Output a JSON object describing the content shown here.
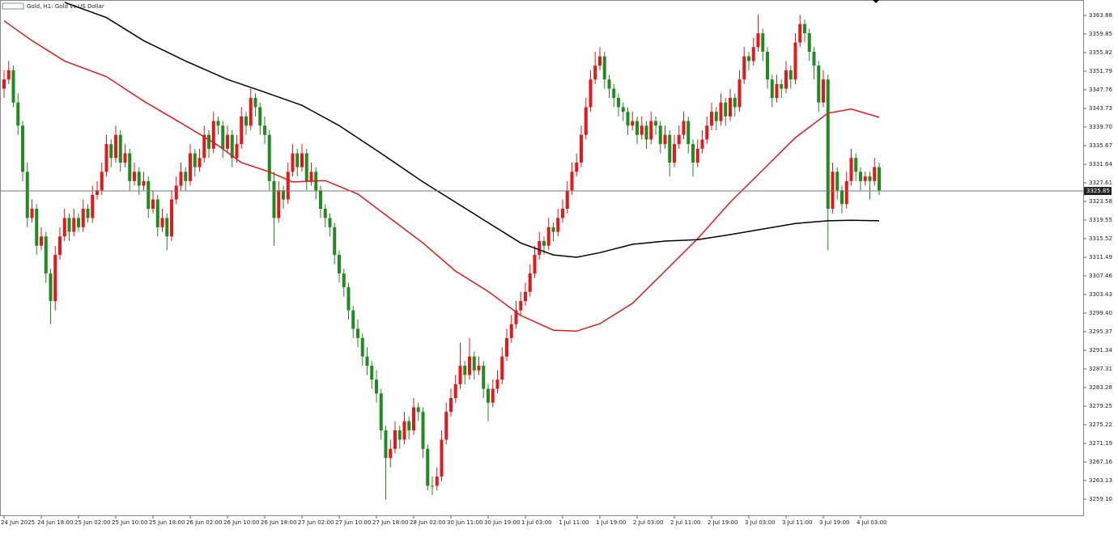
{
  "chart_data": {
    "type": "candlestick",
    "title": "Gold, H1: Gold vs US Dollar",
    "up_color": "#e8161a",
    "down_color": "#1e8c1e",
    "xlim": [
      -0.87,
      231.83
    ],
    "ylim": [
      3255.6,
      3367.21
    ],
    "yticks": [
      {
        "value": 3259.1,
        "label": "3259.10"
      },
      3263.13,
      3267.16,
      3271.19,
      3275.22,
      3279.25,
      3283.28,
      3287.31,
      3291.34,
      3295.37,
      {
        "value": 3299.4,
        "label": "3299.40"
      },
      3303.43,
      3307.46,
      3311.49,
      3315.52,
      3319.55,
      3323.58,
      3327.61,
      3331.64,
      3335.67,
      {
        "value": 3339.7,
        "label": "3339.70"
      },
      3343.73,
      3347.76,
      3351.79,
      3355.82,
      3359.85,
      3363.88
    ],
    "xticks": [
      {
        "value": 0,
        "label": "24 Jun 2025"
      },
      {
        "value": 8,
        "label": "24 Jun 18:00"
      },
      {
        "value": 16,
        "label": "25 Jun 02:00"
      },
      {
        "value": 24,
        "label": "25 Jun 10:00"
      },
      {
        "value": 32,
        "label": "25 Jun 18:00"
      },
      {
        "value": 40,
        "label": "26 Jun 02:00"
      },
      {
        "value": 48,
        "label": "26 Jun 10:00"
      },
      {
        "value": 56,
        "label": "26 Jun 18:00"
      },
      {
        "value": 64,
        "label": "27 Jun 02:00"
      },
      {
        "value": 72,
        "label": "27 Jun 10:00"
      },
      {
        "value": 80,
        "label": "27 Jun 18:00"
      },
      {
        "value": 88,
        "label": "28 Jun 02:00"
      },
      {
        "value": 96,
        "label": "30 Jun 11:00"
      },
      {
        "value": 104,
        "label": "30 Jun 19:00"
      },
      {
        "value": 112,
        "label": "1 Jul 03:00"
      },
      {
        "value": 120,
        "label": "1 Jul 11:00"
      },
      {
        "value": 128,
        "label": "1 Jul 19:00"
      },
      {
        "value": 136,
        "label": "2 Jul 03:00"
      },
      {
        "value": 144,
        "label": "2 Jul 11:00"
      },
      {
        "value": 152,
        "label": "2 Jul 19:00"
      },
      {
        "value": 160,
        "label": "3 Jul 03:00"
      },
      {
        "value": 168,
        "label": "3 Jul 11:00"
      },
      {
        "value": 176,
        "label": "3 Jul 19:00"
      },
      {
        "value": 184,
        "label": "4 Jul 03:00"
      }
    ],
    "last_price": 3325.85,
    "candles": [
      [
        3348,
        3352,
        3346,
        3350
      ],
      [
        3350,
        3354,
        3349,
        3352
      ],
      [
        3352,
        3353,
        3344,
        3345
      ],
      [
        3345,
        3347,
        3338,
        3340
      ],
      [
        3340,
        3341,
        3328,
        3330
      ],
      [
        3330,
        3332,
        3318,
        3320
      ],
      [
        3320,
        3324,
        3319,
        3322
      ],
      [
        3322,
        3323,
        3312,
        3314
      ],
      [
        3314,
        3318,
        3313,
        3316
      ],
      [
        3316,
        3317,
        3306,
        3308
      ],
      [
        3308,
        3309,
        3297,
        3302
      ],
      [
        3302,
        3314,
        3300,
        3312
      ],
      [
        3312,
        3318,
        3311,
        3316
      ],
      [
        3316,
        3322,
        3315,
        3320
      ],
      [
        3320,
        3321,
        3315,
        3317
      ],
      [
        3317,
        3322,
        3316,
        3320
      ],
      [
        3320,
        3321,
        3317,
        3318
      ],
      [
        3318,
        3324,
        3317,
        3322
      ],
      [
        3322,
        3323,
        3319,
        3320
      ],
      [
        3320,
        3327,
        3319,
        3325
      ],
      [
        3325,
        3328,
        3324,
        3326
      ],
      [
        3326,
        3332,
        3325,
        3330
      ],
      [
        3330,
        3338,
        3329,
        3336
      ],
      [
        3336,
        3337,
        3331,
        3333
      ],
      [
        3333,
        3340,
        3332,
        3338
      ],
      [
        3338,
        3339,
        3330,
        3332
      ],
      [
        3332,
        3336,
        3331,
        3334
      ],
      [
        3334,
        3335,
        3326,
        3328
      ],
      [
        3328,
        3332,
        3327,
        3330
      ],
      [
        3330,
        3331,
        3325,
        3327
      ],
      [
        3327,
        3330,
        3326,
        3328
      ],
      [
        3328,
        3329,
        3320,
        3322
      ],
      [
        3322,
        3326,
        3321,
        3324
      ],
      [
        3324,
        3325,
        3316,
        3318
      ],
      [
        3318,
        3322,
        3317,
        3320
      ],
      [
        3320,
        3321,
        3313,
        3316
      ],
      [
        3316,
        3326,
        3315,
        3324
      ],
      [
        3324,
        3329,
        3323,
        3327
      ],
      [
        3327,
        3332,
        3326,
        3330
      ],
      [
        3330,
        3331,
        3326,
        3328
      ],
      [
        3328,
        3336,
        3327,
        3334
      ],
      [
        3334,
        3335,
        3329,
        3331
      ],
      [
        3331,
        3335,
        3330,
        3333
      ],
      [
        3333,
        3340,
        3332,
        3338
      ],
      [
        3338,
        3339,
        3333,
        3335
      ],
      [
        3335,
        3343,
        3334,
        3341
      ],
      [
        3341,
        3342,
        3338,
        3340
      ],
      [
        3340,
        3341,
        3333,
        3335
      ],
      [
        3335,
        3340,
        3334,
        3338
      ],
      [
        3338,
        3339,
        3331,
        3333
      ],
      [
        3333,
        3338,
        3332,
        3336
      ],
      [
        3336,
        3344,
        3335,
        3342
      ],
      [
        3342,
        3343,
        3338,
        3340
      ],
      [
        3340,
        3348,
        3339,
        3346
      ],
      [
        3346,
        3347,
        3342,
        3344
      ],
      [
        3344,
        3345,
        3338,
        3340
      ],
      [
        3340,
        3342,
        3336,
        3338
      ],
      [
        3338,
        3339,
        3326,
        3328
      ],
      [
        3328,
        3330,
        3314,
        3320
      ],
      [
        3320,
        3328,
        3319,
        3326
      ],
      [
        3326,
        3327,
        3322,
        3324
      ],
      [
        3324,
        3332,
        3323,
        3330
      ],
      [
        3330,
        3336,
        3329,
        3334
      ],
      [
        3334,
        3335,
        3329,
        3331
      ],
      [
        3331,
        3336,
        3330,
        3334
      ],
      [
        3334,
        3335,
        3326,
        3328
      ],
      [
        3328,
        3332,
        3327,
        3330
      ],
      [
        3330,
        3331,
        3324,
        3326
      ],
      [
        3326,
        3327,
        3320,
        3322
      ],
      [
        3322,
        3323,
        3318,
        3320
      ],
      [
        3320,
        3321,
        3316,
        3318
      ],
      [
        3318,
        3319,
        3310,
        3312
      ],
      [
        3312,
        3313,
        3306,
        3308
      ],
      [
        3308,
        3309,
        3303,
        3305
      ],
      [
        3305,
        3306,
        3298,
        3300
      ],
      [
        3300,
        3301,
        3294,
        3296
      ],
      [
        3296,
        3298,
        3292,
        3294
      ],
      [
        3294,
        3295,
        3288,
        3290
      ],
      [
        3290,
        3292,
        3286,
        3288
      ],
      [
        3288,
        3289,
        3283,
        3285
      ],
      [
        3285,
        3287,
        3280,
        3282
      ],
      [
        3282,
        3283,
        3272,
        3274
      ],
      [
        3274,
        3275,
        3259,
        3268
      ],
      [
        3268,
        3272,
        3266,
        3270
      ],
      [
        3270,
        3276,
        3269,
        3274
      ],
      [
        3274,
        3275,
        3270,
        3272
      ],
      [
        3272,
        3278,
        3271,
        3276
      ],
      [
        3276,
        3277,
        3272,
        3274
      ],
      [
        3274,
        3281,
        3273,
        3279
      ],
      [
        3279,
        3280,
        3276,
        3278
      ],
      [
        3278,
        3279,
        3268,
        3270
      ],
      [
        3270,
        3271,
        3261,
        3262
      ],
      [
        3262,
        3264,
        3260,
        3262
      ],
      [
        3262,
        3266,
        3261,
        3264
      ],
      [
        3264,
        3274,
        3263,
        3272
      ],
      [
        3272,
        3280,
        3271,
        3278
      ],
      [
        3278,
        3283,
        3277,
        3281
      ],
      [
        3281,
        3286,
        3280,
        3284
      ],
      [
        3284,
        3293,
        3283,
        3288
      ],
      [
        3288,
        3289,
        3284,
        3286
      ],
      [
        3286,
        3294,
        3285,
        3290
      ],
      [
        3290,
        3291,
        3285,
        3287
      ],
      [
        3287,
        3290,
        3286,
        3288
      ],
      [
        3288,
        3289,
        3281,
        3283
      ],
      [
        3283,
        3284,
        3276,
        3280
      ],
      [
        3280,
        3285,
        3279,
        3283
      ],
      [
        3283,
        3287,
        3282,
        3285
      ],
      [
        3285,
        3292,
        3284,
        3290
      ],
      [
        3290,
        3296,
        3289,
        3294
      ],
      [
        3294,
        3299,
        3293,
        3297
      ],
      [
        3297,
        3302,
        3296,
        3300
      ],
      [
        3300,
        3304,
        3299,
        3302
      ],
      [
        3302,
        3306,
        3301,
        3304
      ],
      [
        3304,
        3310,
        3303,
        3308
      ],
      [
        3308,
        3314,
        3307,
        3312
      ],
      [
        3312,
        3317,
        3311,
        3315
      ],
      [
        3315,
        3316,
        3312,
        3314
      ],
      [
        3314,
        3320,
        3313,
        3318
      ],
      [
        3318,
        3319,
        3315,
        3317
      ],
      [
        3317,
        3322,
        3316,
        3320
      ],
      [
        3320,
        3324,
        3319,
        3322
      ],
      [
        3322,
        3328,
        3321,
        3326
      ],
      [
        3326,
        3332,
        3325,
        3330
      ],
      [
        3330,
        3334,
        3329,
        3332
      ],
      [
        3332,
        3340,
        3331,
        3338
      ],
      [
        3338,
        3346,
        3337,
        3344
      ],
      [
        3344,
        3352,
        3343,
        3350
      ],
      [
        3350,
        3356,
        3349,
        3353
      ],
      [
        3353,
        3357,
        3352,
        3355
      ],
      [
        3355,
        3356,
        3348,
        3350
      ],
      [
        3350,
        3351,
        3346,
        3348
      ],
      [
        3348,
        3349,
        3344,
        3346
      ],
      [
        3346,
        3347,
        3342,
        3344
      ],
      [
        3344,
        3345,
        3341,
        3343
      ],
      [
        3343,
        3344,
        3338,
        3340
      ],
      [
        3340,
        3343,
        3339,
        3341
      ],
      [
        3341,
        3342,
        3336,
        3338
      ],
      [
        3338,
        3342,
        3337,
        3340
      ],
      [
        3340,
        3341,
        3335,
        3337
      ],
      [
        3337,
        3343,
        3336,
        3341
      ],
      [
        3341,
        3342,
        3338,
        3340
      ],
      [
        3340,
        3341,
        3334,
        3336
      ],
      [
        3336,
        3340,
        3335,
        3338
      ],
      [
        3338,
        3339,
        3329,
        3332
      ],
      [
        3332,
        3338,
        3331,
        3336
      ],
      [
        3336,
        3340,
        3335,
        3338
      ],
      [
        3338,
        3343,
        3337,
        3341
      ],
      [
        3341,
        3342,
        3334,
        3336
      ],
      [
        3336,
        3337,
        3329,
        3332
      ],
      [
        3332,
        3337,
        3331,
        3335
      ],
      [
        3335,
        3339,
        3334,
        3337
      ],
      [
        3337,
        3342,
        3336,
        3340
      ],
      [
        3340,
        3345,
        3339,
        3343
      ],
      [
        3343,
        3344,
        3339,
        3341
      ],
      [
        3341,
        3347,
        3340,
        3345
      ],
      [
        3345,
        3346,
        3340,
        3342
      ],
      [
        3342,
        3348,
        3341,
        3346
      ],
      [
        3346,
        3347,
        3342,
        3344
      ],
      [
        3344,
        3352,
        3343,
        3350
      ],
      [
        3350,
        3357,
        3349,
        3355
      ],
      [
        3355,
        3356,
        3352,
        3354
      ],
      [
        3354,
        3359,
        3353,
        3357
      ],
      [
        3357,
        3364,
        3356,
        3360
      ],
      [
        3360,
        3361,
        3354,
        3356
      ],
      [
        3356,
        3357,
        3348,
        3350
      ],
      [
        3350,
        3351,
        3344,
        3346
      ],
      [
        3346,
        3351,
        3345,
        3349
      ],
      [
        3349,
        3350,
        3346,
        3348
      ],
      [
        3348,
        3354,
        3347,
        3352
      ],
      [
        3352,
        3353,
        3348,
        3350
      ],
      [
        3350,
        3360,
        3349,
        3358
      ],
      [
        3358,
        3364,
        3357,
        3362
      ],
      [
        3362,
        3363,
        3358,
        3360
      ],
      [
        3360,
        3361,
        3354,
        3356
      ],
      [
        3356,
        3357,
        3350,
        3353
      ],
      [
        3353,
        3354,
        3343,
        3345
      ],
      [
        3345,
        3352,
        3344,
        3350
      ],
      [
        3350,
        3351,
        3313,
        3322
      ],
      [
        3322,
        3332,
        3321,
        3330
      ],
      [
        3330,
        3331,
        3324,
        3326
      ],
      [
        3326,
        3327,
        3321,
        3323
      ],
      [
        3323,
        3330,
        3322,
        3328
      ],
      [
        3328,
        3335,
        3327,
        3333
      ],
      [
        3333,
        3334,
        3328,
        3330
      ],
      [
        3330,
        3331,
        3326,
        3328
      ],
      [
        3328,
        3330,
        3327,
        3329
      ],
      [
        3329,
        3330,
        3324,
        3328
      ],
      [
        3328,
        3333,
        3327,
        3331
      ],
      [
        3331,
        3332,
        3325,
        3326
      ]
    ],
    "lines": [
      {
        "color": "#e8161a",
        "x": [
          0,
          6,
          13,
          22,
          30,
          39,
          46,
          51,
          57,
          62,
          69,
          76,
          83,
          90,
          97,
          104,
          111,
          118,
          123,
          128,
          135,
          142,
          149,
          156,
          163,
          170,
          177,
          182,
          188
        ],
        "values": [
          3362.7,
          3358.4,
          3354,
          3350.6,
          3345.3,
          3340,
          3335.7,
          3332,
          3330,
          3327.8,
          3328.1,
          3325.2,
          3319.9,
          3314.6,
          3308.5,
          3304.1,
          3298.9,
          3295.7,
          3295.5,
          3297.1,
          3301.5,
          3308.5,
          3315.5,
          3323.4,
          3330.4,
          3337.4,
          3342.7,
          3343.6,
          3341.8
        ]
      },
      {
        "color": "#000000",
        "x": [
          13,
          22,
          30,
          39,
          48,
          55,
          64,
          72,
          81,
          90,
          97,
          104,
          111,
          118,
          123,
          128,
          135,
          142,
          149,
          156,
          163,
          170,
          177,
          182,
          188
        ],
        "values": [
          3366.7,
          3363.4,
          3358.4,
          3354,
          3350,
          3347.6,
          3344.4,
          3340,
          3334,
          3327.8,
          3323.4,
          3319,
          3314.6,
          3312,
          3311.5,
          3312.5,
          3314.3,
          3315,
          3315.3,
          3316.4,
          3317.6,
          3318.8,
          3319.4,
          3319.5,
          3319.4
        ]
      }
    ]
  }
}
